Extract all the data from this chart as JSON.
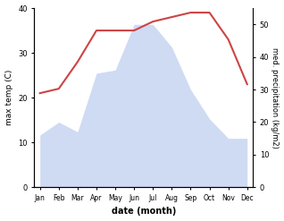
{
  "months": [
    "Jan",
    "Feb",
    "Mar",
    "Apr",
    "May",
    "Jun",
    "Jul",
    "Aug",
    "Sep",
    "Oct",
    "Nov",
    "Dec"
  ],
  "temperature": [
    21,
    22,
    28,
    35,
    35,
    35,
    37,
    38,
    39,
    39,
    33,
    23
  ],
  "precipitation": [
    16,
    20,
    17,
    35,
    36,
    50,
    50,
    43,
    30,
    21,
    15,
    15
  ],
  "temp_color": "#cc4444",
  "precip_color": "#bbccee",
  "temp_ylim": [
    0,
    40
  ],
  "precip_ylim": [
    0,
    55
  ],
  "temp_ylabel": "max temp (C)",
  "precip_ylabel": "med. precipitation (kg/m2)",
  "xlabel": "date (month)",
  "temp_yticks": [
    0,
    10,
    20,
    30,
    40
  ],
  "precip_yticks": [
    0,
    10,
    20,
    30,
    40,
    50
  ],
  "background_color": "#ffffff"
}
